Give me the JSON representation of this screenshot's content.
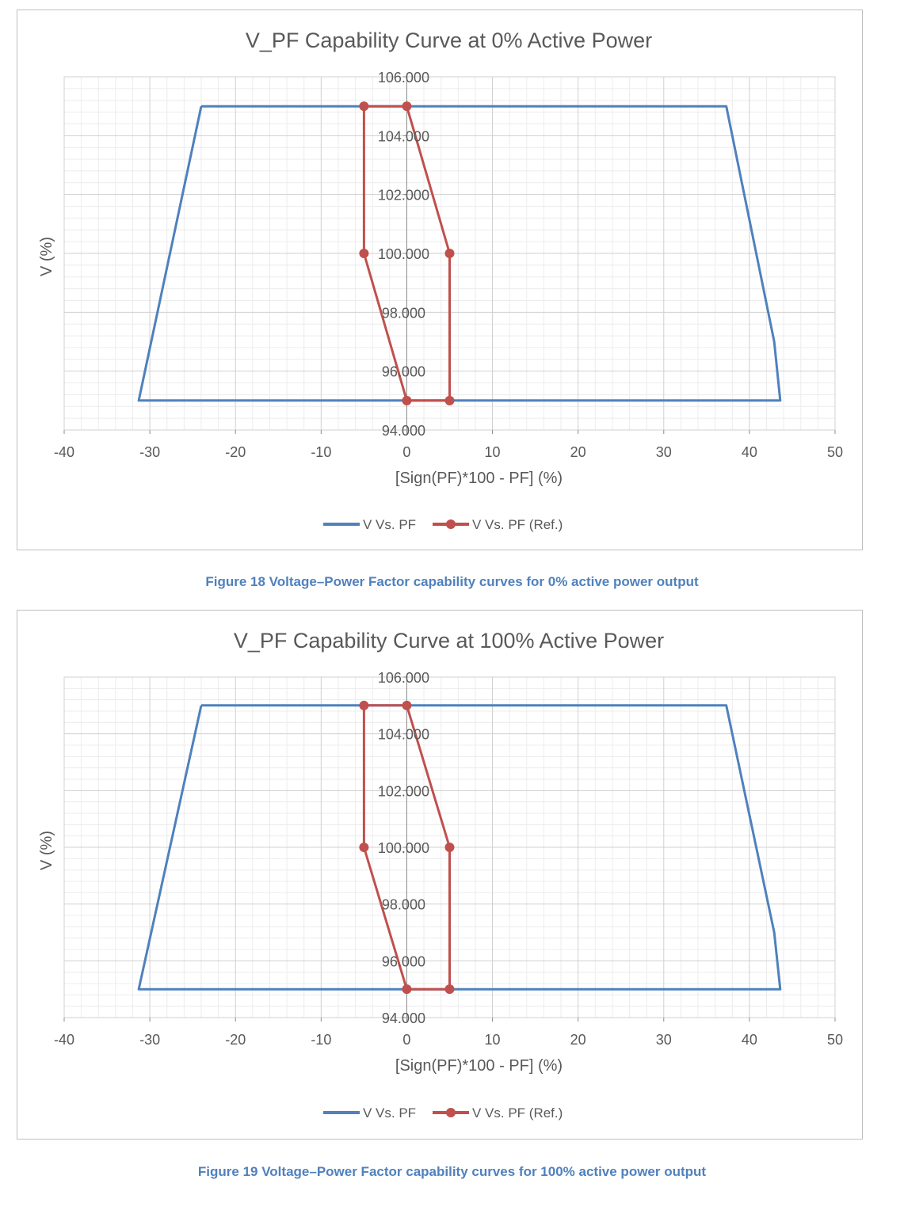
{
  "colors": {
    "series1": "#4f81bd",
    "series2": "#c0504d",
    "caption": "#4f81bd"
  },
  "captions": [
    "Figure 18 Voltage–Power Factor capability curves for 0% active power output",
    "Figure 19 Voltage–Power Factor capability curves for 100% active power output"
  ],
  "chart_data": [
    {
      "type": "line",
      "title": "V_PF Capability Curve at 0% Active Power",
      "xlabel": "[Sign(PF)*100 - PF] (%)",
      "ylabel": "V (%)",
      "xlim": [
        -40,
        50
      ],
      "ylim": [
        94,
        106
      ],
      "x_ticks": [
        "-40",
        "-30",
        "-20",
        "-10",
        "0",
        "10",
        "20",
        "30",
        "40",
        "50"
      ],
      "y_ticks": [
        "94.000",
        "96.000",
        "98.000",
        "100.000",
        "102.000",
        "104.000",
        "106.000"
      ],
      "grid": true,
      "legend": "bottom",
      "series": [
        {
          "name": "V Vs. PF",
          "markers": false,
          "x": [
            -24,
            37.3,
            42.9,
            43.6,
            -31.3,
            -24
          ],
          "y": [
            105,
            105,
            97,
            95,
            95,
            105
          ]
        },
        {
          "name": "V Vs. PF (Ref.)",
          "markers": true,
          "x": [
            -5,
            0,
            5,
            5,
            0,
            -5,
            -5
          ],
          "y": [
            105,
            105,
            100,
            95,
            95,
            100,
            105
          ]
        }
      ]
    },
    {
      "type": "line",
      "title": "V_PF Capability Curve at 100% Active Power",
      "xlabel": "[Sign(PF)*100 - PF] (%)",
      "ylabel": "V (%)",
      "xlim": [
        -40,
        50
      ],
      "ylim": [
        94,
        106
      ],
      "x_ticks": [
        "-40",
        "-30",
        "-20",
        "-10",
        "0",
        "10",
        "20",
        "30",
        "40",
        "50"
      ],
      "y_ticks": [
        "94.000",
        "96.000",
        "98.000",
        "100.000",
        "102.000",
        "104.000",
        "106.000"
      ],
      "grid": true,
      "legend": "bottom",
      "series": [
        {
          "name": "V Vs. PF",
          "markers": false,
          "x": [
            -24,
            37.3,
            42.9,
            43.6,
            -31.3,
            -24
          ],
          "y": [
            105,
            105,
            97,
            95,
            95,
            105
          ]
        },
        {
          "name": "V Vs. PF (Ref.)",
          "markers": true,
          "x": [
            -5,
            0,
            5,
            5,
            0,
            -5,
            -5
          ],
          "y": [
            105,
            105,
            100,
            95,
            95,
            100,
            105
          ]
        }
      ]
    }
  ]
}
